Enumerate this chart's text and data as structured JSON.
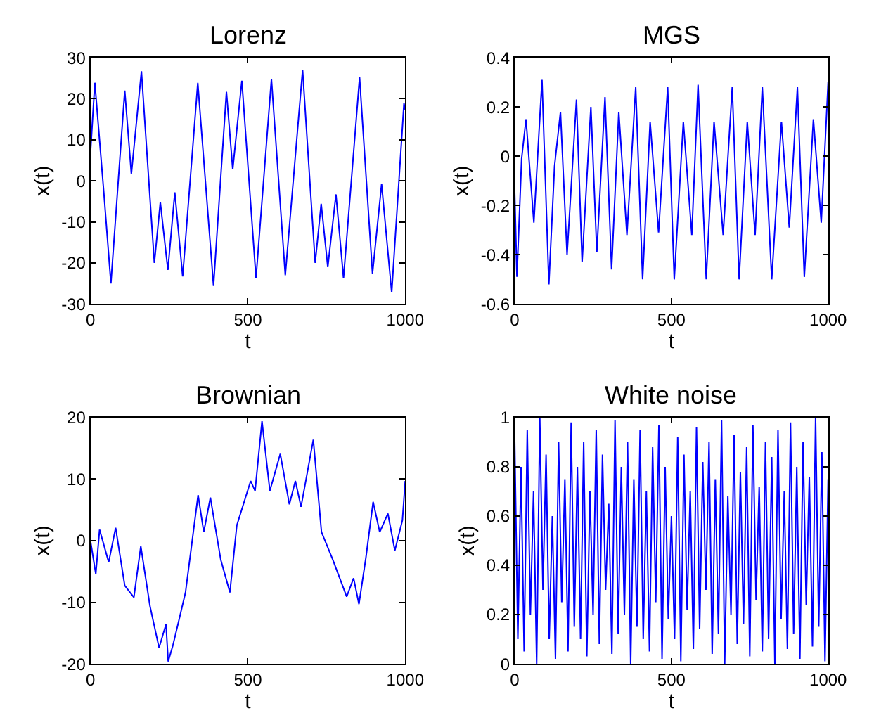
{
  "chart_data": [
    {
      "type": "line",
      "title": "Lorenz",
      "xlabel": "t",
      "ylabel": "x(t)",
      "xlim": [
        0,
        1000
      ],
      "xticks": [
        0,
        500,
        1000
      ],
      "ylim": [
        -30,
        30
      ],
      "yticks": [
        -30,
        -20,
        -10,
        0,
        10,
        20,
        30
      ],
      "x": [
        0,
        14,
        43,
        65,
        109,
        130,
        162,
        203,
        222,
        246,
        268,
        293,
        341,
        391,
        432,
        452,
        481,
        526,
        575,
        619,
        674,
        714,
        733,
        754,
        780,
        804,
        855,
        896,
        925,
        957,
        996,
        1000
      ],
      "series": [
        {
          "color": "#0000ff",
          "values": [
            6.7,
            23.9,
            -3.3,
            -25,
            22,
            1.7,
            26.7,
            -20,
            -5.2,
            -21.7,
            -2.8,
            -23.3,
            23.9,
            -25.6,
            21.7,
            2.8,
            24.4,
            -23.7,
            24.8,
            -23,
            27,
            -20,
            -5.6,
            -21,
            -3.3,
            -23.7,
            25.2,
            -22.6,
            -0.8,
            -27.2,
            18.9,
            17.2
          ]
        }
      ]
    },
    {
      "type": "line",
      "title": "MGS",
      "xlabel": "t",
      "ylabel": "x(t)",
      "xlim": [
        0,
        1000
      ],
      "xticks": [
        0,
        500,
        1000
      ],
      "ylim": [
        -0.6,
        0.4
      ],
      "yticks": [
        -0.6,
        -0.4,
        -0.2,
        0,
        0.2,
        0.4
      ],
      "x": [
        0,
        7,
        22,
        36,
        61,
        87,
        109,
        127,
        146,
        167,
        197,
        215,
        243,
        262,
        288,
        309,
        332,
        358,
        386,
        408,
        432,
        459,
        488,
        509,
        538,
        565,
        585,
        611,
        636,
        665,
        694,
        716,
        742,
        767,
        790,
        820,
        851,
        876,
        902,
        924,
        953,
        978,
        1000
      ],
      "series": [
        {
          "color": "#0000ff",
          "values": [
            -0.15,
            -0.49,
            -0.01,
            0.15,
            -0.27,
            0.31,
            -0.52,
            -0.04,
            0.18,
            -0.4,
            0.23,
            -0.43,
            0.2,
            -0.39,
            0.24,
            -0.46,
            0.18,
            -0.32,
            0.28,
            -0.5,
            0.14,
            -0.31,
            0.28,
            -0.5,
            0.14,
            -0.32,
            0.29,
            -0.5,
            0.14,
            -0.32,
            0.28,
            -0.5,
            0.14,
            -0.32,
            0.28,
            -0.5,
            0.14,
            -0.29,
            0.28,
            -0.49,
            0.15,
            -0.27,
            0.3
          ]
        }
      ]
    },
    {
      "type": "line",
      "title": "Brownian",
      "xlabel": "t",
      "ylabel": "x(t)",
      "xlim": [
        0,
        1000
      ],
      "xticks": [
        0,
        500,
        1000
      ],
      "ylim": [
        -20,
        20
      ],
      "yticks": [
        -20,
        -10,
        0,
        10,
        20
      ],
      "x": [
        0,
        17,
        29,
        58,
        80,
        109,
        138,
        160,
        189,
        218,
        240,
        247,
        262,
        283,
        302,
        342,
        360,
        381,
        414,
        443,
        465,
        509,
        523,
        545,
        570,
        603,
        632,
        651,
        669,
        708,
        734,
        770,
        814,
        836,
        853,
        875,
        898,
        919,
        945,
        967,
        991,
        1000
      ],
      "series": [
        {
          "color": "#0000ff",
          "values": [
            0,
            -5.4,
            1.8,
            -3.5,
            2.1,
            -7.3,
            -9.2,
            -0.9,
            -10.6,
            -17.4,
            -13.6,
            -19.6,
            -17,
            -12.5,
            -8.4,
            7.4,
            1.4,
            7,
            -3.1,
            -8.4,
            2.5,
            9.7,
            8.1,
            19.4,
            8.1,
            14.1,
            5.9,
            9.7,
            5.5,
            16.4,
            1.4,
            -3.1,
            -9.1,
            -6.1,
            -10.3,
            -2.8,
            6.3,
            1.4,
            4.4,
            -1.6,
            3.3,
            9.7
          ]
        }
      ]
    },
    {
      "type": "line",
      "title": "White noise",
      "xlabel": "t",
      "ylabel": "x(t)",
      "xlim": [
        0,
        1000
      ],
      "xticks": [
        0,
        500,
        1000
      ],
      "ylim": [
        0,
        1
      ],
      "yticks": [
        0,
        0.2,
        0.4,
        0.6,
        0.8,
        1
      ],
      "x": [
        0,
        10,
        20,
        30,
        40,
        50,
        60,
        70,
        80,
        90,
        100,
        110,
        120,
        130,
        140,
        150,
        160,
        170,
        180,
        190,
        200,
        210,
        220,
        230,
        240,
        250,
        260,
        270,
        280,
        290,
        300,
        310,
        320,
        330,
        340,
        350,
        360,
        370,
        380,
        390,
        400,
        410,
        420,
        430,
        440,
        450,
        460,
        470,
        480,
        490,
        500,
        510,
        520,
        530,
        540,
        550,
        560,
        570,
        580,
        590,
        600,
        610,
        620,
        630,
        640,
        650,
        660,
        670,
        680,
        690,
        700,
        710,
        720,
        730,
        740,
        750,
        760,
        770,
        780,
        790,
        800,
        810,
        820,
        830,
        840,
        850,
        860,
        870,
        880,
        890,
        900,
        910,
        920,
        930,
        940,
        950,
        960,
        970,
        980,
        990,
        1000
      ],
      "series": [
        {
          "color": "#0000ff",
          "values": [
            0.9,
            0.1,
            0.8,
            0.05,
            0.95,
            0.2,
            0.7,
            0.0,
            1.0,
            0.3,
            0.85,
            0.1,
            0.6,
            0.02,
            0.9,
            0.25,
            0.75,
            0.05,
            0.98,
            0.15,
            0.8,
            0.1,
            0.9,
            0.03,
            0.7,
            0.2,
            0.95,
            0.08,
            0.85,
            0.3,
            0.65,
            0.04,
            0.99,
            0.12,
            0.8,
            0.2,
            0.9,
            0.0,
            0.75,
            0.15,
            0.95,
            0.1,
            0.7,
            0.05,
            0.88,
            0.25,
            0.97,
            0.02,
            0.8,
            0.18,
            0.6,
            0.1,
            0.92,
            0.01,
            0.85,
            0.22,
            0.7,
            0.06,
            0.96,
            0.14,
            0.82,
            0.3,
            0.9,
            0.04,
            0.75,
            0.12,
            0.99,
            0.0,
            0.68,
            0.2,
            0.93,
            0.08,
            0.78,
            0.16,
            0.88,
            0.03,
            0.97,
            0.26,
            0.72,
            0.05,
            0.9,
            0.1,
            0.84,
            0.0,
            0.95,
            0.18,
            0.7,
            0.06,
            0.98,
            0.12,
            0.8,
            0.02,
            0.9,
            0.24,
            0.76,
            0.07,
            1.0,
            0.15,
            0.86,
            0.01,
            0.75
          ]
        }
      ]
    }
  ]
}
